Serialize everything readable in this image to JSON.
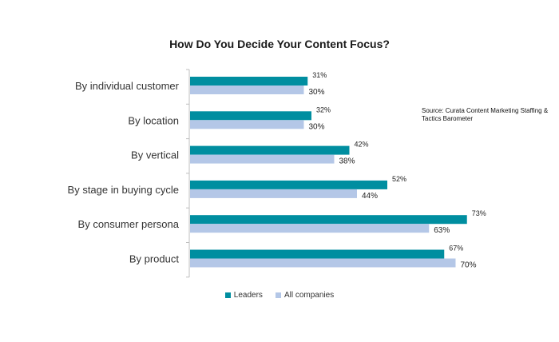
{
  "chart_data": {
    "type": "bar",
    "orientation": "horizontal",
    "title": "How Do You Decide Your Content Focus?",
    "categories": [
      "By individual customer",
      "By location",
      "By vertical",
      "By stage in buying cycle",
      "By consumer persona",
      "By product"
    ],
    "series": [
      {
        "name": "Leaders",
        "values": [
          31,
          32,
          42,
          52,
          73,
          67
        ],
        "labels": [
          "31%",
          "32%",
          "42%",
          "52%",
          "73%",
          "67%"
        ],
        "color": "#008ea0"
      },
      {
        "name": "All companies",
        "values": [
          30,
          30,
          38,
          44,
          63,
          70
        ],
        "labels": [
          "30%",
          "30%",
          "38%",
          "44%",
          "63%",
          "70%"
        ],
        "color": "#b4c7e7"
      }
    ],
    "xlim": [
      0,
      80
    ],
    "grid": false,
    "legend_position": "bottom",
    "annotations": [
      "Source: Curata Content Marketing Staffing & Tactics Barometer"
    ]
  }
}
